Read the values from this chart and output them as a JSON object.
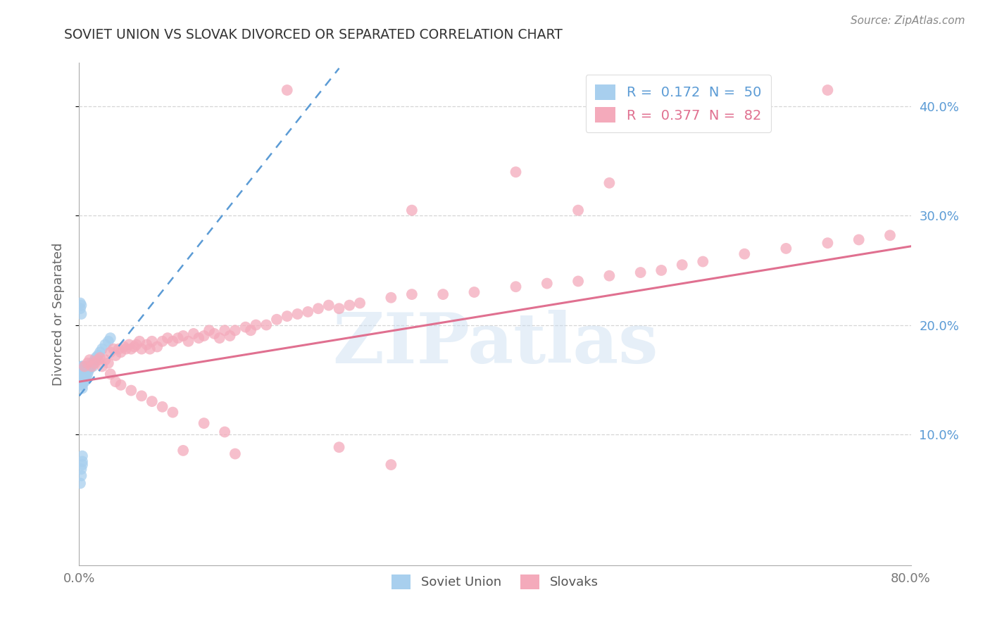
{
  "title": "SOVIET UNION VS SLOVAK DIVORCED OR SEPARATED CORRELATION CHART",
  "source": "Source: ZipAtlas.com",
  "ylabel": "Divorced or Separated",
  "watermark": "ZIPatlas",
  "xlim": [
    0.0,
    0.8
  ],
  "ylim": [
    -0.02,
    0.44
  ],
  "ytick_labels_right": [
    "10.0%",
    "20.0%",
    "30.0%",
    "40.0%"
  ],
  "ytick_vals_right": [
    0.1,
    0.2,
    0.3,
    0.4
  ],
  "legend_r_blue": "0.172",
  "legend_n_blue": "50",
  "legend_r_pink": "0.377",
  "legend_n_pink": "82",
  "blue_scatter_color": "#A8CFEE",
  "pink_scatter_color": "#F4AABB",
  "blue_line_color": "#5B9BD5",
  "pink_line_color": "#E07090",
  "grid_color": "#CCCCCC",
  "title_color": "#333333",
  "right_tick_color": "#5B9BD5",
  "soviet_union_x": [
    0.001,
    0.001,
    0.001,
    0.001,
    0.001,
    0.001,
    0.002,
    0.002,
    0.002,
    0.002,
    0.002,
    0.002,
    0.002,
    0.003,
    0.003,
    0.003,
    0.003,
    0.003,
    0.003,
    0.003,
    0.004,
    0.004,
    0.004,
    0.004,
    0.004,
    0.005,
    0.005,
    0.005,
    0.005,
    0.006,
    0.006,
    0.006,
    0.007,
    0.007,
    0.008,
    0.008,
    0.009,
    0.01,
    0.011,
    0.012,
    0.013,
    0.014,
    0.015,
    0.016,
    0.018,
    0.02,
    0.022,
    0.025,
    0.028,
    0.03
  ],
  "soviet_union_y": [
    0.148,
    0.15,
    0.152,
    0.155,
    0.158,
    0.16,
    0.145,
    0.148,
    0.15,
    0.152,
    0.155,
    0.158,
    0.162,
    0.142,
    0.145,
    0.148,
    0.15,
    0.155,
    0.158,
    0.162,
    0.148,
    0.152,
    0.155,
    0.158,
    0.162,
    0.148,
    0.152,
    0.155,
    0.16,
    0.15,
    0.155,
    0.16,
    0.152,
    0.158,
    0.155,
    0.162,
    0.158,
    0.16,
    0.162,
    0.165,
    0.162,
    0.165,
    0.168,
    0.17,
    0.172,
    0.175,
    0.178,
    0.182,
    0.185,
    0.188
  ],
  "soviet_union_y_outliers": [
    0.22,
    0.215,
    0.218,
    0.21,
    0.055,
    0.062,
    0.068,
    0.075,
    0.08,
    0.072
  ],
  "soviet_union_x_outliers": [
    0.001,
    0.001,
    0.002,
    0.002,
    0.001,
    0.002,
    0.002,
    0.003,
    0.003,
    0.003
  ],
  "slovaks_x": [
    0.005,
    0.008,
    0.01,
    0.012,
    0.015,
    0.018,
    0.02,
    0.022,
    0.025,
    0.028,
    0.03,
    0.033,
    0.035,
    0.038,
    0.04,
    0.043,
    0.045,
    0.048,
    0.05,
    0.053,
    0.055,
    0.058,
    0.06,
    0.065,
    0.068,
    0.07,
    0.075,
    0.08,
    0.085,
    0.09,
    0.095,
    0.1,
    0.105,
    0.11,
    0.115,
    0.12,
    0.125,
    0.13,
    0.135,
    0.14,
    0.145,
    0.15,
    0.16,
    0.165,
    0.17,
    0.18,
    0.19,
    0.2,
    0.21,
    0.22,
    0.23,
    0.24,
    0.25,
    0.26,
    0.27,
    0.3,
    0.32,
    0.35,
    0.38,
    0.42,
    0.45,
    0.48,
    0.51,
    0.54,
    0.56,
    0.58,
    0.6,
    0.64,
    0.68,
    0.72,
    0.75,
    0.78,
    0.03,
    0.035,
    0.04,
    0.05,
    0.06,
    0.07,
    0.08,
    0.09,
    0.12,
    0.14
  ],
  "slovaks_y": [
    0.162,
    0.165,
    0.168,
    0.162,
    0.165,
    0.168,
    0.17,
    0.162,
    0.168,
    0.165,
    0.175,
    0.178,
    0.172,
    0.178,
    0.175,
    0.18,
    0.178,
    0.182,
    0.178,
    0.18,
    0.182,
    0.185,
    0.178,
    0.182,
    0.178,
    0.185,
    0.18,
    0.185,
    0.188,
    0.185,
    0.188,
    0.19,
    0.185,
    0.192,
    0.188,
    0.19,
    0.195,
    0.192,
    0.188,
    0.195,
    0.19,
    0.195,
    0.198,
    0.195,
    0.2,
    0.2,
    0.205,
    0.208,
    0.21,
    0.212,
    0.215,
    0.218,
    0.215,
    0.218,
    0.22,
    0.225,
    0.228,
    0.228,
    0.23,
    0.235,
    0.238,
    0.24,
    0.245,
    0.248,
    0.25,
    0.255,
    0.258,
    0.265,
    0.27,
    0.275,
    0.278,
    0.282,
    0.155,
    0.148,
    0.145,
    0.14,
    0.135,
    0.13,
    0.125,
    0.12,
    0.11,
    0.102
  ],
  "slovaks_outliers_x": [
    0.2,
    0.32,
    0.72,
    0.42,
    0.48,
    0.51,
    0.1,
    0.15,
    0.25,
    0.3
  ],
  "slovaks_outliers_y": [
    0.415,
    0.305,
    0.415,
    0.34,
    0.305,
    0.33,
    0.085,
    0.082,
    0.088,
    0.072
  ],
  "blue_trend_x": [
    0.0,
    0.25
  ],
  "blue_trend_y": [
    0.135,
    0.435
  ],
  "pink_trend_x": [
    0.0,
    0.8
  ],
  "pink_trend_y": [
    0.148,
    0.272
  ]
}
